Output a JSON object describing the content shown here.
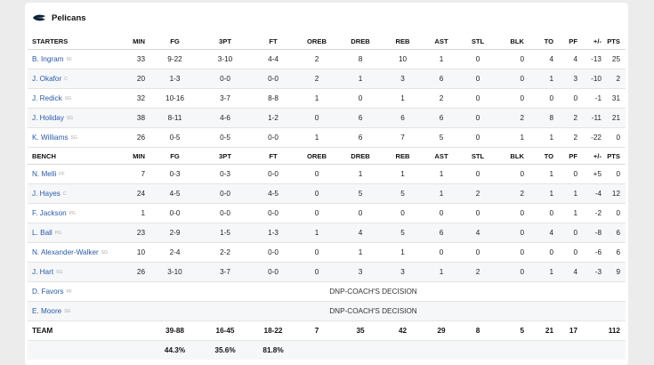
{
  "team": {
    "name": "Pelicans"
  },
  "starters_header": [
    "STARTERS",
    "MIN",
    "FG",
    "3PT",
    "FT",
    "OREB",
    "DREB",
    "REB",
    "AST",
    "STL",
    "BLK",
    "TO",
    "PF",
    "+/-",
    "PTS"
  ],
  "starters": [
    {
      "name": "B. Ingram",
      "pos": "SF",
      "stats": [
        "33",
        "9-22",
        "3-10",
        "4-4",
        "2",
        "8",
        "10",
        "1",
        "0",
        "0",
        "4",
        "4",
        "-13",
        "25"
      ]
    },
    {
      "name": "J. Okafor",
      "pos": "C",
      "stats": [
        "20",
        "1-3",
        "0-0",
        "0-0",
        "2",
        "1",
        "3",
        "6",
        "0",
        "0",
        "1",
        "3",
        "-10",
        "2"
      ]
    },
    {
      "name": "J. Redick",
      "pos": "SG",
      "stats": [
        "32",
        "10-16",
        "3-7",
        "8-8",
        "1",
        "0",
        "1",
        "2",
        "0",
        "0",
        "0",
        "0",
        "-1",
        "31"
      ]
    },
    {
      "name": "J. Holiday",
      "pos": "SG",
      "stats": [
        "38",
        "8-11",
        "4-6",
        "1-2",
        "0",
        "6",
        "6",
        "6",
        "0",
        "2",
        "8",
        "2",
        "-11",
        "21"
      ]
    },
    {
      "name": "K. Williams",
      "pos": "SG",
      "stats": [
        "26",
        "0-5",
        "0-5",
        "0-0",
        "1",
        "6",
        "7",
        "5",
        "0",
        "1",
        "1",
        "2",
        "-22",
        "0"
      ]
    }
  ],
  "bench_header": [
    "BENCH",
    "MIN",
    "FG",
    "3PT",
    "FT",
    "OREB",
    "DREB",
    "REB",
    "AST",
    "STL",
    "BLK",
    "TO",
    "PF",
    "+/-",
    "PTS"
  ],
  "bench": [
    {
      "name": "N. Melli",
      "pos": "PF",
      "stats": [
        "7",
        "0-3",
        "0-3",
        "0-0",
        "0",
        "1",
        "1",
        "1",
        "0",
        "0",
        "1",
        "0",
        "+5",
        "0"
      ]
    },
    {
      "name": "J. Hayes",
      "pos": "C",
      "stats": [
        "24",
        "4-5",
        "0-0",
        "4-5",
        "0",
        "5",
        "5",
        "1",
        "2",
        "2",
        "1",
        "1",
        "-4",
        "12"
      ]
    },
    {
      "name": "F. Jackson",
      "pos": "PG",
      "stats": [
        "1",
        "0-0",
        "0-0",
        "0-0",
        "0",
        "0",
        "0",
        "0",
        "0",
        "0",
        "0",
        "1",
        "-2",
        "0"
      ]
    },
    {
      "name": "L. Ball",
      "pos": "PG",
      "stats": [
        "23",
        "2-9",
        "1-5",
        "1-3",
        "1",
        "4",
        "5",
        "6",
        "4",
        "0",
        "4",
        "0",
        "-8",
        "6"
      ]
    },
    {
      "name": "N. Alexander-Walker",
      "pos": "SG",
      "stats": [
        "10",
        "2-4",
        "2-2",
        "0-0",
        "0",
        "1",
        "1",
        "0",
        "0",
        "0",
        "0",
        "0",
        "-6",
        "6"
      ]
    },
    {
      "name": "J. Hart",
      "pos": "SG",
      "stats": [
        "26",
        "3-10",
        "3-7",
        "0-0",
        "0",
        "3",
        "3",
        "1",
        "2",
        "0",
        "1",
        "4",
        "-3",
        "9"
      ]
    }
  ],
  "dnp": [
    {
      "name": "D. Favors",
      "pos": "PF",
      "reason": "DNP-COACH'S DECISION"
    },
    {
      "name": "E. Moore",
      "pos": "SG",
      "reason": "DNP-COACH'S DECISION"
    }
  ],
  "totals": {
    "label": "TEAM",
    "stats": [
      "",
      "39-88",
      "16-45",
      "18-22",
      "7",
      "35",
      "42",
      "29",
      "8",
      "5",
      "21",
      "17",
      "",
      "112"
    ]
  },
  "percentages": {
    "fg": "44.3%",
    "three": "35.6%",
    "ft": "81.8%"
  }
}
